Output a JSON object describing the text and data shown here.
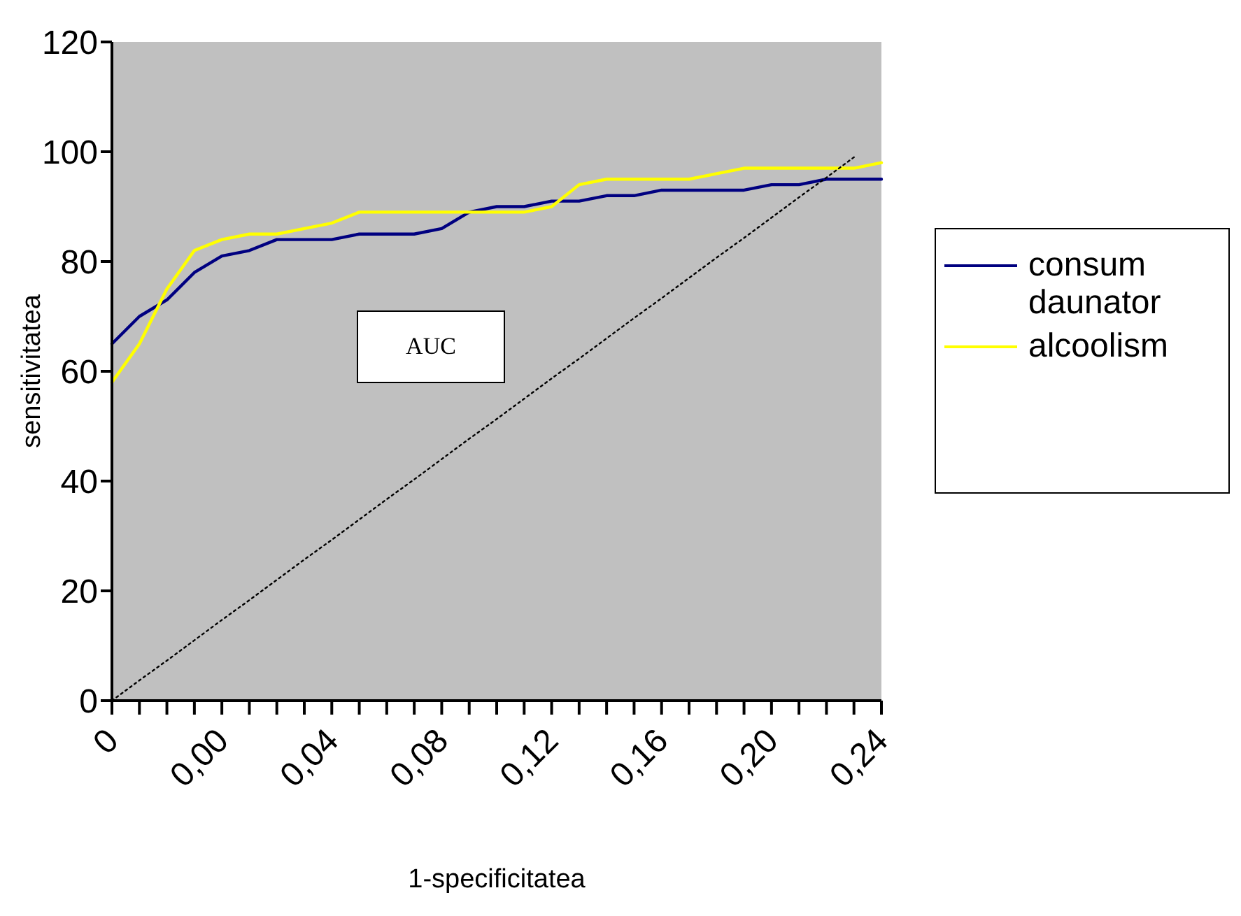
{
  "chart_data": {
    "type": "line",
    "xlabel": "1-specificitatea",
    "ylabel": "sensitivitatea",
    "categories": [
      "0",
      null,
      null,
      null,
      "0,00",
      null,
      null,
      null,
      "0,04",
      null,
      null,
      null,
      "0,08",
      null,
      null,
      null,
      "0,12",
      null,
      null,
      null,
      "0,16",
      null,
      null,
      null,
      "0,20",
      null,
      null,
      null,
      "0,24"
    ],
    "series": [
      {
        "name": "consum daunator",
        "color": "#000080",
        "values": [
          65,
          70,
          73,
          78,
          81,
          82,
          84,
          84,
          84,
          85,
          85,
          85,
          86,
          89,
          90,
          90,
          91,
          91,
          92,
          92,
          93,
          93,
          93,
          93,
          94,
          94,
          95,
          95,
          95
        ]
      },
      {
        "name": "alcoolism",
        "color": "#ffff00",
        "values": [
          58,
          65,
          75,
          82,
          84,
          85,
          85,
          86,
          87,
          89,
          89,
          89,
          89,
          89,
          89,
          89,
          90,
          94,
          95,
          95,
          95,
          95,
          96,
          97,
          97,
          97,
          97,
          97,
          98
        ]
      },
      {
        "color": "#000000",
        "line_style": "dotted",
        "values": [
          0,
          3.7,
          7.3,
          11,
          14.7,
          18.3,
          22,
          25.7,
          29.3,
          33,
          36.7,
          40.3,
          44,
          47.7,
          51.3,
          55,
          58.7,
          62.3,
          66,
          69.7,
          73.3,
          77,
          80.7,
          84.3,
          88,
          91.7,
          95.3,
          99,
          null
        ]
      }
    ],
    "ylim": [
      0,
      120
    ],
    "yticks": [
      0,
      20,
      40,
      60,
      80,
      100,
      120
    ],
    "grid": false,
    "legend": "right",
    "marker": "none",
    "annotations": [
      "AUC"
    ]
  }
}
